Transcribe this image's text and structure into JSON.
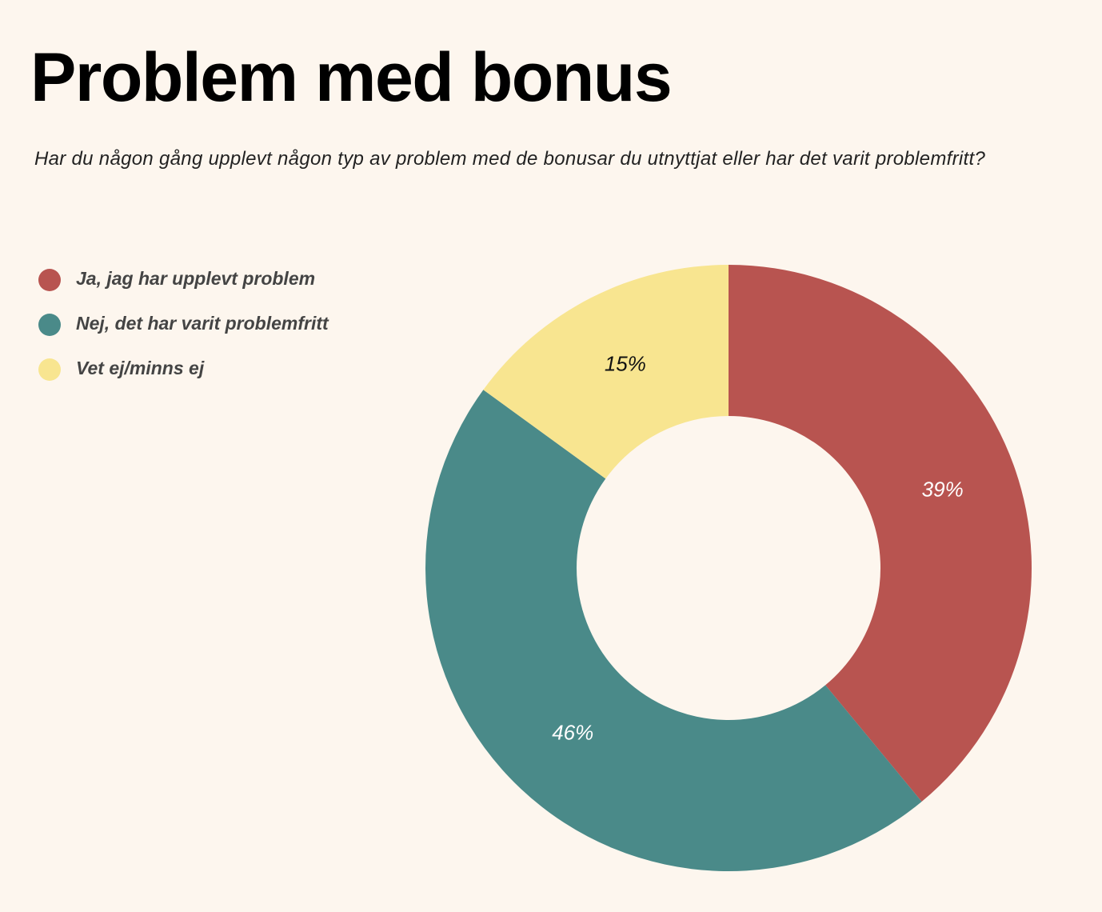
{
  "chart_data": {
    "type": "pie",
    "title": "Problem med bonus",
    "subtitle": "Har du någon gång upplevt någon typ av problem med de bonusar du utnyttjat eller har det varit problemfritt?",
    "categories": [
      "Ja, jag har upplevt problem",
      "Nej, det har varit problemfritt",
      "Vet ej/minns ej"
    ],
    "values": [
      39,
      46,
      15
    ],
    "value_labels": [
      "39%",
      "46%",
      "15%"
    ],
    "colors": [
      "#b85450",
      "#4a8a89",
      "#f8e590"
    ]
  }
}
